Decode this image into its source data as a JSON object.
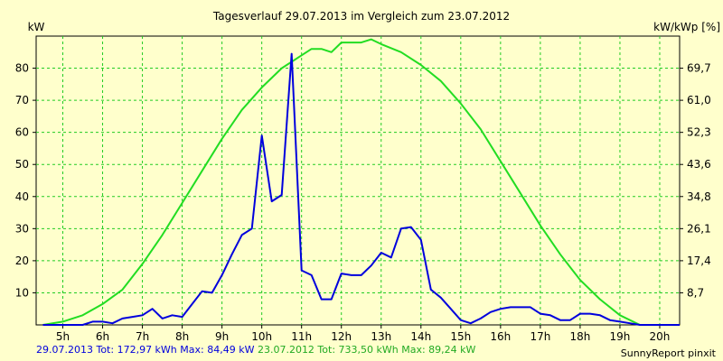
{
  "chart_data": {
    "type": "line",
    "title": "Tagesverlauf 29.07.2013 im Vergleich zum 23.07.2012",
    "ylabel_left": "kW",
    "ylabel_right": "kW/kWp [%]",
    "x_ticks": [
      "5h",
      "6h",
      "7h",
      "8h",
      "9h",
      "10h",
      "11h",
      "12h",
      "13h",
      "14h",
      "15h",
      "16h",
      "17h",
      "18h",
      "19h",
      "20h"
    ],
    "y_ticks_left": [
      10,
      20,
      30,
      40,
      50,
      60,
      70,
      80
    ],
    "y_ticks_right": [
      "8,7",
      "17,4",
      "26,1",
      "34,8",
      "43,6",
      "52,3",
      "61,0",
      "69,7"
    ],
    "xlim": [
      4.33,
      20.5
    ],
    "ylim": [
      0,
      90
    ],
    "grid": true,
    "series": [
      {
        "name": "29.07.2013",
        "color": "#0000dd",
        "x": [
          4.5,
          5,
          5.5,
          5.75,
          6,
          6.25,
          6.5,
          6.75,
          7,
          7.25,
          7.5,
          7.75,
          8,
          8.25,
          8.5,
          8.75,
          9,
          9.25,
          9.5,
          9.75,
          10,
          10.25,
          10.5,
          10.75,
          11,
          11.25,
          11.5,
          11.75,
          12,
          12.25,
          12.5,
          12.75,
          13,
          13.25,
          13.5,
          13.75,
          14,
          14.25,
          14.5,
          14.75,
          15,
          15.25,
          15.5,
          15.75,
          16,
          16.25,
          16.5,
          16.75,
          17,
          17.25,
          17.5,
          17.75,
          18,
          18.25,
          18.5,
          18.75,
          19,
          19.25,
          19.5,
          20,
          20.5
        ],
        "y": [
          0,
          0,
          0,
          1,
          1,
          0.5,
          2,
          2.5,
          3,
          5,
          2,
          3,
          2.5,
          6.5,
          10.5,
          10,
          15.5,
          22,
          28,
          30,
          59,
          38.5,
          40.5,
          84.5,
          17,
          15.5,
          8,
          8,
          16,
          15.5,
          15.5,
          18.5,
          22.5,
          21,
          30,
          30.5,
          26.5,
          11,
          8.5,
          5,
          1.5,
          0.5,
          2,
          4,
          5,
          5.5,
          5.5,
          5.5,
          3.5,
          3,
          1.5,
          1.5,
          3.5,
          3.5,
          3,
          1.5,
          1,
          0.5,
          0,
          0,
          0
        ]
      },
      {
        "name": "23.07.2012",
        "color": "#22dd22",
        "x": [
          4.5,
          5,
          5.5,
          6,
          6.5,
          7,
          7.5,
          8,
          8.5,
          9,
          9.5,
          10,
          10.5,
          11,
          11.25,
          11.5,
          11.75,
          12,
          12.5,
          12.75,
          13,
          13.5,
          14,
          14.5,
          15,
          15.5,
          16,
          16.5,
          17,
          17.5,
          18,
          18.5,
          19,
          19.5,
          20,
          20.5
        ],
        "y": [
          0,
          1,
          3,
          6.5,
          11,
          19,
          28,
          38,
          48,
          58,
          67,
          74,
          80,
          84,
          86,
          86,
          85,
          88,
          88,
          89,
          87.5,
          85,
          81,
          76,
          69,
          61,
          51,
          41,
          31,
          22,
          14,
          8,
          3,
          0,
          0,
          0
        ]
      }
    ]
  },
  "footer": {
    "series1_text": "29.07.2013 Tot: 172,97 kWh Max: 84,49 kW",
    "series2_text": "23.07.2012 Tot: 733,50 kWh Max: 89,24 kW",
    "credit": "SunnyReport pinxit"
  }
}
